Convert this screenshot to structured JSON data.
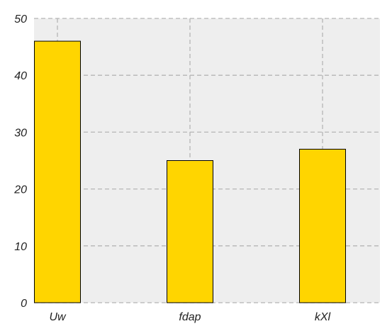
{
  "chart_data": {
    "type": "bar",
    "title": "",
    "xlabel": "",
    "ylabel": "",
    "categories": [
      "Uw",
      "fdap",
      "kXl"
    ],
    "values": [
      46,
      25,
      27
    ],
    "ylim": [
      0,
      50
    ],
    "yticks": [
      0,
      10,
      20,
      30,
      40,
      50
    ],
    "grid": true,
    "legend": "none",
    "colors": {
      "bar": "#ffd500",
      "plot_background": "#eeeeee",
      "grid": "#b5b5b5"
    }
  }
}
